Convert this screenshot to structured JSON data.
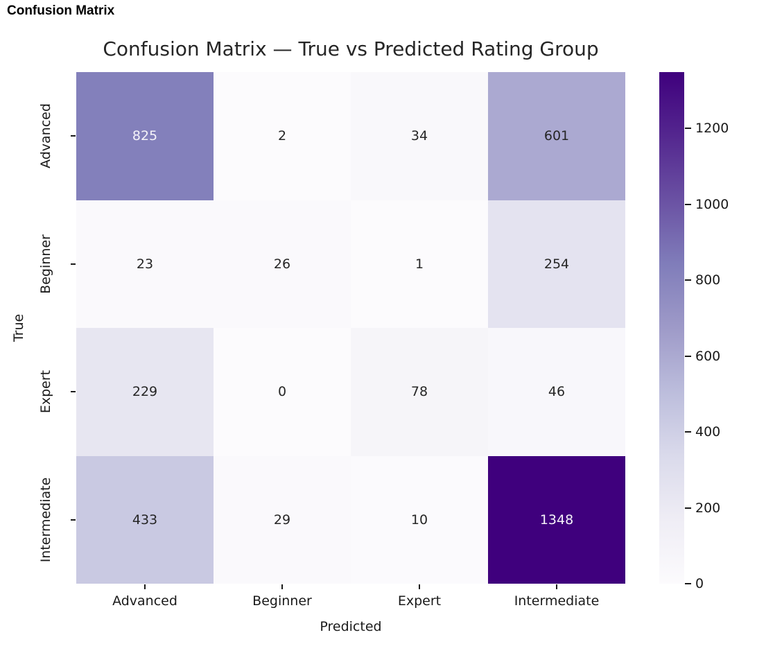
{
  "page": {
    "heading": "Confusion Matrix"
  },
  "chart_data": {
    "type": "heatmap",
    "title": "Confusion Matrix — True vs Predicted Rating Group",
    "xlabel": "Predicted",
    "ylabel": "True",
    "x_categories": [
      "Advanced",
      "Beginner",
      "Expert",
      "Intermediate"
    ],
    "y_categories": [
      "Advanced",
      "Beginner",
      "Expert",
      "Intermediate"
    ],
    "matrix": [
      [
        825,
        2,
        34,
        601
      ],
      [
        23,
        26,
        1,
        254
      ],
      [
        229,
        0,
        78,
        46
      ],
      [
        433,
        29,
        10,
        1348
      ]
    ],
    "vmin": 0,
    "vmax": 1348,
    "colormap": "Purples",
    "colormap_stops": [
      "#fcfbfd",
      "#efedf5",
      "#dadaeb",
      "#bcbddc",
      "#9e9ac8",
      "#807dba",
      "#6a51a3",
      "#54278f",
      "#3f007d"
    ],
    "colorbar_ticks": [
      0,
      200,
      400,
      600,
      800,
      1000,
      1200
    ],
    "annotation_dark_color": "#262626",
    "annotation_light_color": "#f5f3f9",
    "grid": false,
    "legend_position": "colorbar-right"
  }
}
